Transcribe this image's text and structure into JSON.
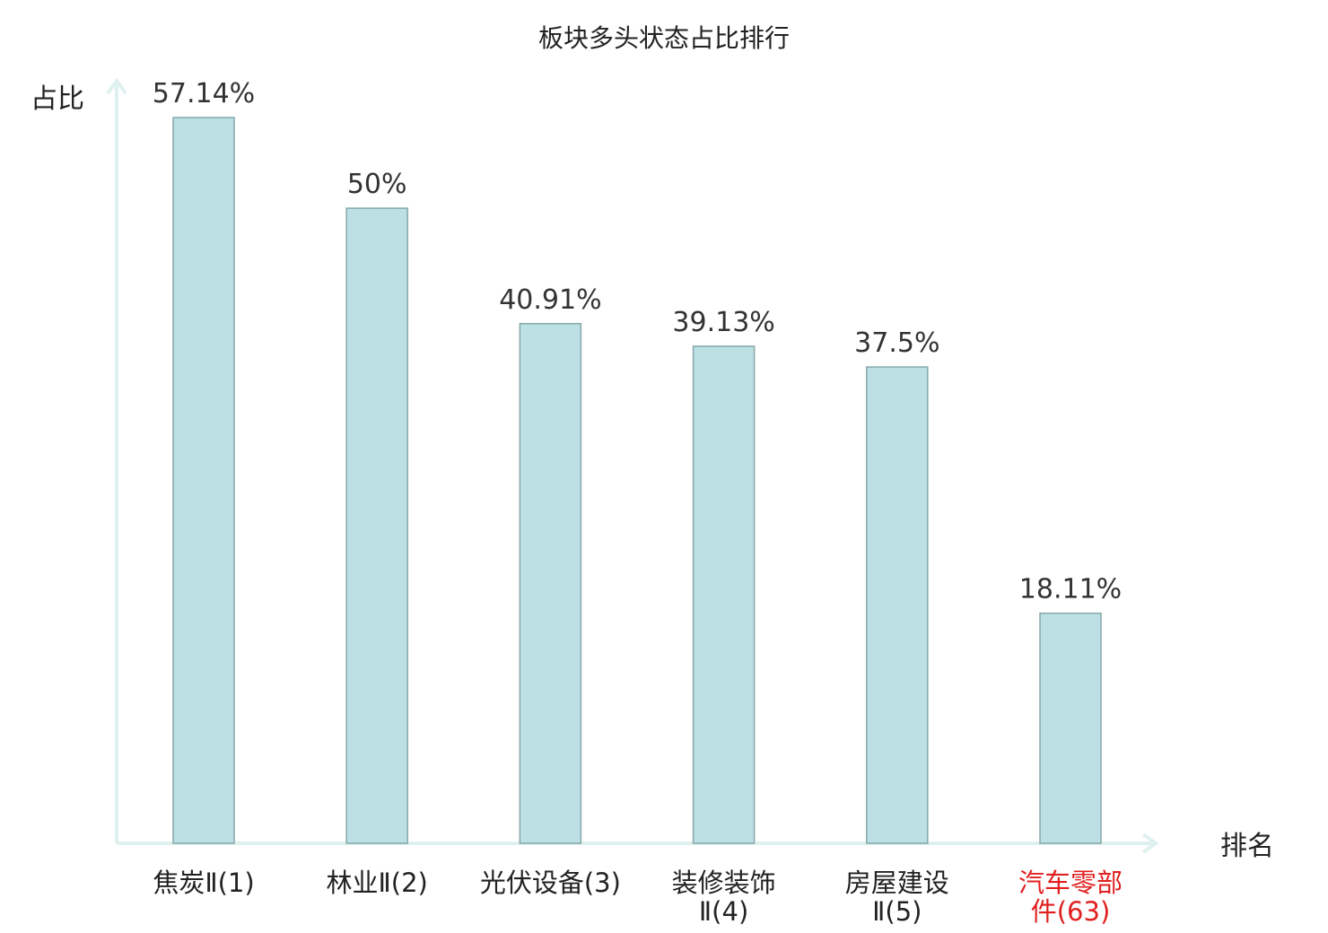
{
  "chart_data": {
    "type": "bar",
    "title": "板块多头状态占比排行",
    "ylabel": "占比",
    "xlabel": "排名",
    "categories": [
      [
        "焦炭Ⅱ(1)"
      ],
      [
        "林业Ⅱ(2)"
      ],
      [
        "光伏设备(3)"
      ],
      [
        "装修装饰",
        "Ⅱ(4)"
      ],
      [
        "房屋建设",
        "Ⅱ(5)"
      ],
      [
        "汽车零部",
        "件(63)"
      ]
    ],
    "values": [
      57.14,
      50,
      40.91,
      39.13,
      37.5,
      18.11
    ],
    "value_labels": [
      "57.14%",
      "50%",
      "40.91%",
      "39.13%",
      "37.5%",
      "18.11%"
    ],
    "highlight_index": 5,
    "ylim": [
      0,
      60
    ],
    "grid": false
  },
  "colors": {
    "bar_fill": "#bce0e3",
    "bar_stroke": "#86a8aa",
    "axis": "#dff1ef",
    "text": "#222222",
    "highlight": "#e0201f"
  }
}
